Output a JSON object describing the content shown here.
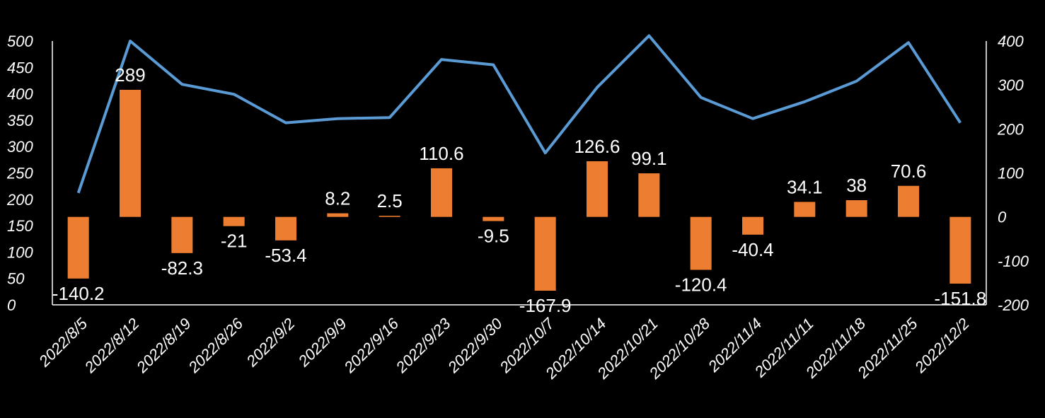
{
  "chart_data": {
    "type": "bar+line",
    "categories": [
      "2022/8/5",
      "2022/8/12",
      "2022/8/19",
      "2022/8/26",
      "2022/9/2",
      "2022/9/9",
      "2022/9/16",
      "2022/9/23",
      "2022/9/30",
      "2022/10/7",
      "2022/10/14",
      "2022/10/21",
      "2022/10/28",
      "2022/11/4",
      "2022/11/11",
      "2022/11/18",
      "2022/11/25",
      "2022/12/2"
    ],
    "series": [
      {
        "name": "bar",
        "type": "bar",
        "axis": "right",
        "color": "#ED7D31",
        "values": [
          -140.2,
          289,
          -82.3,
          -21,
          -53.4,
          8.2,
          2.5,
          110.6,
          -9.5,
          -167.9,
          126.6,
          99.1,
          -120.4,
          -40.4,
          34.1,
          38,
          70.6,
          -151.8
        ],
        "labels": [
          "-140.2",
          "289",
          "-82.3",
          "-21",
          "-53.4",
          "8.2",
          "2.5",
          "110.6",
          "-9.5",
          "-167.9",
          "126.6",
          "99.1",
          "-120.4",
          "-40.4",
          "34.1",
          "38",
          "70.6",
          "-151.8"
        ]
      },
      {
        "name": "line",
        "type": "line",
        "axis": "left",
        "color": "#5B9BD5",
        "values": [
          212,
          500,
          418,
          399,
          345,
          353,
          355,
          465,
          455,
          288,
          412,
          510,
          393,
          353,
          385,
          424,
          497,
          345
        ]
      }
    ],
    "left_axis": {
      "ylim": [
        0,
        500
      ],
      "ticks": [
        "500",
        "450",
        "400",
        "350",
        "300",
        "250",
        "200",
        "150",
        "100",
        "50",
        "0"
      ],
      "tick_values": [
        500,
        450,
        400,
        350,
        300,
        250,
        200,
        150,
        100,
        50,
        0
      ]
    },
    "right_axis": {
      "ylim": [
        -200,
        400
      ],
      "ticks": [
        "400",
        "300",
        "200",
        "100",
        "0",
        "-100",
        "-200"
      ],
      "tick_values": [
        400,
        300,
        200,
        100,
        0,
        -100,
        -200
      ]
    },
    "title": "",
    "xlabel": "",
    "ylabel": "",
    "grid": false,
    "legend": "none"
  }
}
